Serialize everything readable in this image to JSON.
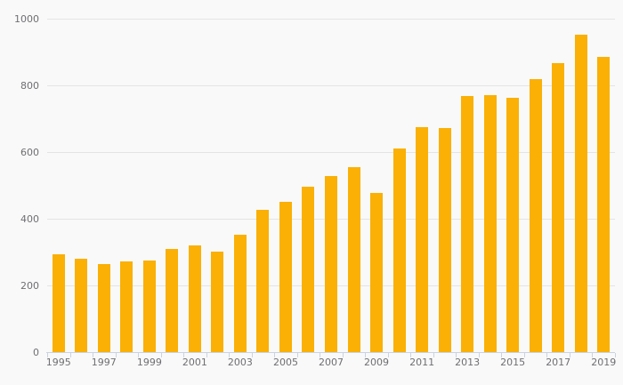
{
  "chart_data": {
    "type": "bar",
    "title": "",
    "xlabel": "",
    "ylabel": "",
    "categories": [
      "1995",
      "1996",
      "1997",
      "1998",
      "1999",
      "2000",
      "2001",
      "2002",
      "2003",
      "2004",
      "2005",
      "2006",
      "2007",
      "2008",
      "2009",
      "2010",
      "2011",
      "2012",
      "2013",
      "2014",
      "2015",
      "2016",
      "2017",
      "2018",
      "2019"
    ],
    "values": [
      293,
      280,
      264,
      271,
      276,
      310,
      321,
      302,
      352,
      427,
      450,
      496,
      527,
      556,
      477,
      610,
      676,
      671,
      767,
      771,
      764,
      820,
      868,
      952,
      886
    ],
    "ylim": [
      0,
      1000
    ],
    "yticks": [
      0,
      200,
      400,
      600,
      800,
      1000
    ],
    "ytick_labels": [
      "0",
      "200",
      "400",
      "600",
      "800",
      "1000"
    ],
    "x_label_step": 2,
    "grid": "horizontal only",
    "legend": "none",
    "colors": {
      "bar": "#FAB005",
      "background": "#f9f9f9",
      "gridline": "#e4e4e4",
      "axis": "#c9d3e0",
      "tick": "#c9d3e0",
      "label_text": "#6f6f73"
    }
  }
}
